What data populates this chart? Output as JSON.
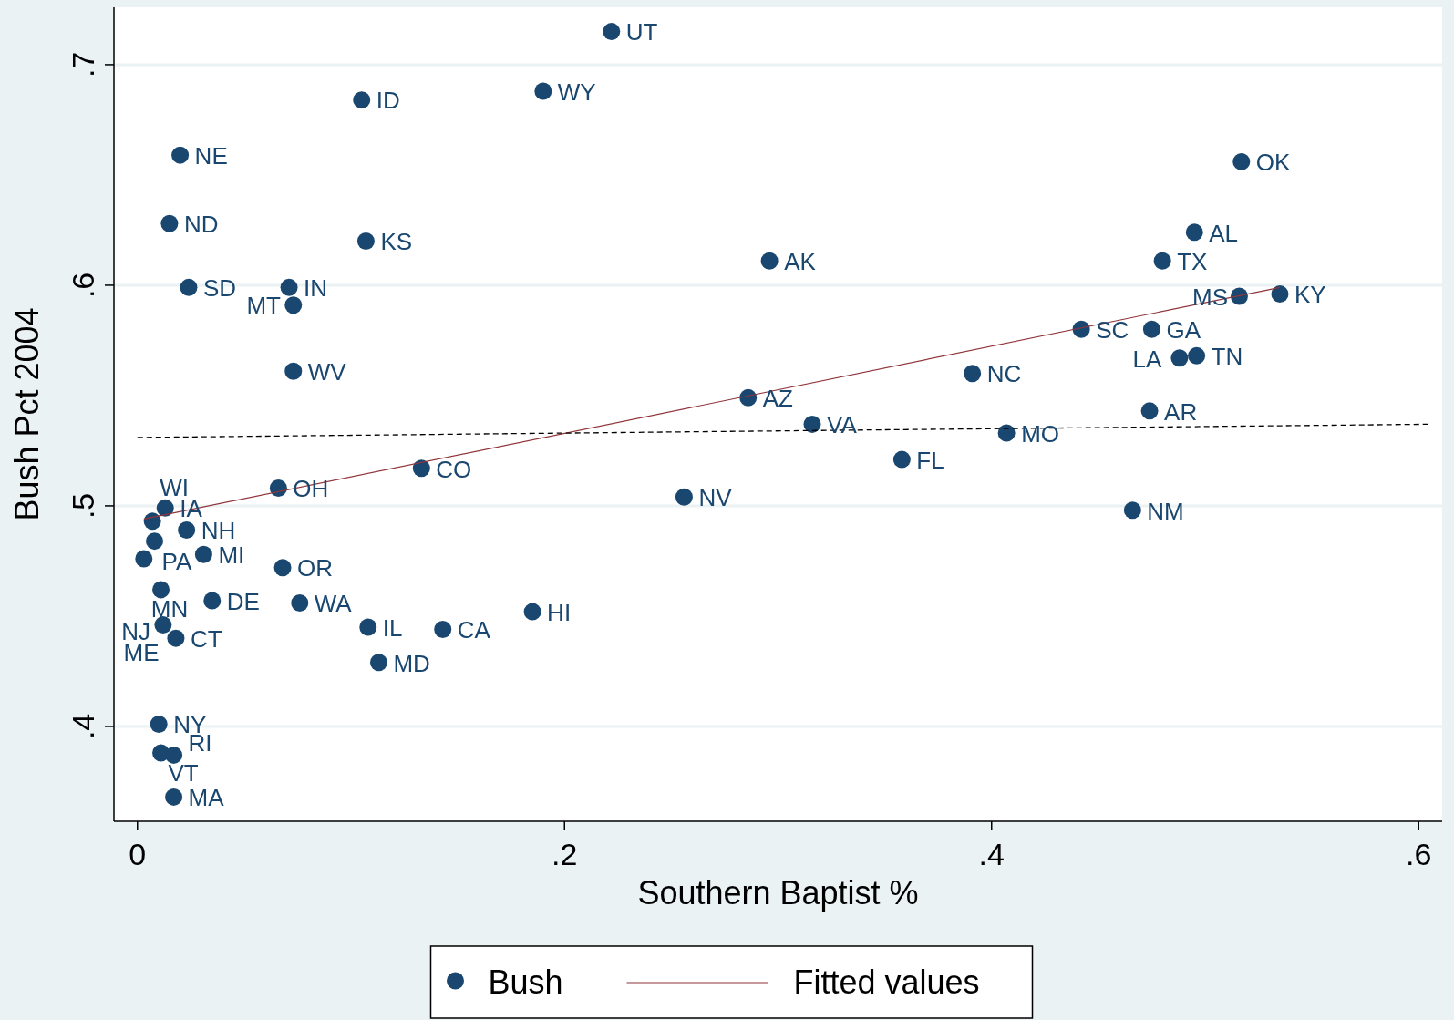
{
  "chart_data": {
    "type": "scatter",
    "xlabel": "Southern Baptist %",
    "ylabel": "Bush Pct 2004",
    "xlim": [
      -0.011,
      0.611
    ],
    "ylim": [
      0.357,
      0.726
    ],
    "xticks": [
      0,
      {
        "value": 0.2,
        "label": ".2"
      },
      {
        "value": 0.4,
        "label": ".4"
      },
      {
        "value": 0.6,
        "label": ".6"
      }
    ],
    "yticks": [
      {
        "value": 0.4,
        "label": ".4"
      },
      {
        "value": 0.5,
        "label": ".5"
      },
      {
        "value": 0.6,
        "label": ".6"
      },
      {
        "value": 0.7,
        "label": ".7"
      }
    ],
    "grid": "y",
    "legend": "bottom",
    "marker": "circle",
    "series": [
      {
        "name": "Bush",
        "color": "#1a476f",
        "x": [
          0.222,
          0.19,
          0.105,
          0.02,
          0.517,
          0.015,
          0.107,
          0.495,
          0.48,
          0.296,
          0.024,
          0.071,
          0.073,
          0.516,
          0.535,
          0.442,
          0.475,
          0.488,
          0.496,
          0.391,
          0.073,
          0.286,
          0.474,
          0.316,
          0.407,
          0.358,
          0.133,
          0.256,
          0.066,
          0.466,
          0.013,
          0.007,
          0.023,
          0.008,
          0.031,
          0.003,
          0.068,
          0.011,
          0.035,
          0.076,
          0.185,
          0.012,
          0.108,
          0.143,
          0.018,
          0.113,
          0.01,
          0.011,
          0.017,
          0.017
        ],
        "values": [
          0.715,
          0.688,
          0.684,
          0.659,
          0.656,
          0.628,
          0.62,
          0.624,
          0.611,
          0.611,
          0.599,
          0.599,
          0.591,
          0.595,
          0.596,
          0.58,
          0.58,
          0.567,
          0.568,
          0.56,
          0.561,
          0.549,
          0.543,
          0.537,
          0.533,
          0.521,
          0.517,
          0.504,
          0.508,
          0.498,
          0.499,
          0.493,
          0.489,
          0.484,
          0.478,
          0.476,
          0.472,
          0.462,
          0.457,
          0.456,
          0.452,
          0.446,
          0.445,
          0.444,
          0.44,
          0.429,
          0.401,
          0.388,
          0.387,
          0.368
        ]
      },
      {
        "name": "Fitted values",
        "type": "line",
        "color": "#90353b",
        "marker": "none",
        "line_style": "solid",
        "x": [
          0.003,
          0.535
        ],
        "values": [
          0.494,
          0.599
        ]
      },
      {
        "type": "line",
        "color": "#000000",
        "marker": "none",
        "line_style": "dashed",
        "x": [
          0,
          0.605
        ],
        "values": [
          0.531,
          0.537
        ]
      }
    ],
    "annotations": [
      {
        "text": "UT",
        "x": 0.222,
        "y": 0.715
      },
      {
        "text": "WY",
        "x": 0.19,
        "y": 0.688
      },
      {
        "text": "ID",
        "x": 0.105,
        "y": 0.684
      },
      {
        "text": "NE",
        "x": 0.02,
        "y": 0.659
      },
      {
        "text": "OK",
        "x": 0.517,
        "y": 0.656
      },
      {
        "text": "ND",
        "x": 0.015,
        "y": 0.628
      },
      {
        "text": "KS",
        "x": 0.107,
        "y": 0.62
      },
      {
        "text": "AL",
        "x": 0.495,
        "y": 0.624
      },
      {
        "text": "TX",
        "x": 0.48,
        "y": 0.611
      },
      {
        "text": "AK",
        "x": 0.296,
        "y": 0.611
      },
      {
        "text": "SD",
        "x": 0.024,
        "y": 0.599
      },
      {
        "text": "IN",
        "x": 0.071,
        "y": 0.599
      },
      {
        "text": "MT",
        "x": 0.073,
        "y": 0.591
      },
      {
        "text": "MS",
        "x": 0.516,
        "y": 0.595
      },
      {
        "text": "KY",
        "x": 0.535,
        "y": 0.596
      },
      {
        "text": "SC",
        "x": 0.442,
        "y": 0.58
      },
      {
        "text": "GA",
        "x": 0.475,
        "y": 0.58
      },
      {
        "text": "LA",
        "x": 0.488,
        "y": 0.567
      },
      {
        "text": "TN",
        "x": 0.496,
        "y": 0.568
      },
      {
        "text": "NC",
        "x": 0.391,
        "y": 0.56
      },
      {
        "text": "WV",
        "x": 0.073,
        "y": 0.561
      },
      {
        "text": "AZ",
        "x": 0.286,
        "y": 0.549
      },
      {
        "text": "AR",
        "x": 0.474,
        "y": 0.543
      },
      {
        "text": "VA",
        "x": 0.316,
        "y": 0.537
      },
      {
        "text": "MO",
        "x": 0.407,
        "y": 0.533
      },
      {
        "text": "FL",
        "x": 0.358,
        "y": 0.521
      },
      {
        "text": "CO",
        "x": 0.133,
        "y": 0.517
      },
      {
        "text": "NV",
        "x": 0.256,
        "y": 0.504
      },
      {
        "text": "OH",
        "x": 0.066,
        "y": 0.508
      },
      {
        "text": "NM",
        "x": 0.466,
        "y": 0.498
      },
      {
        "text": "IA",
        "x": 0.013,
        "y": 0.499
      },
      {
        "text": "WI",
        "x": 0.007,
        "y": 0.493
      },
      {
        "text": "NH",
        "x": 0.023,
        "y": 0.489
      },
      {
        "text": "PA",
        "x": 0.008,
        "y": 0.484
      },
      {
        "text": "MI",
        "x": 0.031,
        "y": 0.478
      },
      {
        "text": "MN",
        "x": 0.003,
        "y": 0.476
      },
      {
        "text": "OR",
        "x": 0.068,
        "y": 0.472
      },
      {
        "text": "NJ",
        "x": 0.011,
        "y": 0.462
      },
      {
        "text": "DE",
        "x": 0.035,
        "y": 0.457
      },
      {
        "text": "WA",
        "x": 0.076,
        "y": 0.456
      },
      {
        "text": "HI",
        "x": 0.185,
        "y": 0.452
      },
      {
        "text": "ME",
        "x": 0.012,
        "y": 0.446
      },
      {
        "text": "IL",
        "x": 0.108,
        "y": 0.445
      },
      {
        "text": "CA",
        "x": 0.143,
        "y": 0.444
      },
      {
        "text": "CT",
        "x": 0.018,
        "y": 0.44
      },
      {
        "text": "MD",
        "x": 0.113,
        "y": 0.429
      },
      {
        "text": "NY",
        "x": 0.01,
        "y": 0.401
      },
      {
        "text": "VT",
        "x": 0.011,
        "y": 0.388
      },
      {
        "text": "RI",
        "x": 0.017,
        "y": 0.387
      },
      {
        "text": "MA",
        "x": 0.017,
        "y": 0.368
      }
    ]
  }
}
